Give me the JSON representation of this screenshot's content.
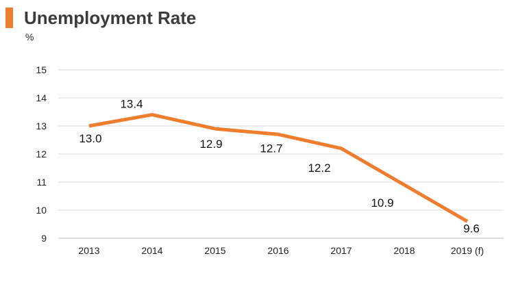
{
  "chart_data": {
    "type": "line",
    "title": "Unemployment Rate",
    "ylabel": "%",
    "xlabel": "",
    "categories": [
      "2013",
      "2014",
      "2015",
      "2016",
      "2017",
      "2018",
      "2019 (f)"
    ],
    "series": [
      {
        "values": [
          13.0,
          13.4,
          12.9,
          12.7,
          12.2,
          10.9,
          9.6
        ]
      }
    ],
    "data_labels": [
      "13.0",
      "13.4",
      "12.9",
      "12.7",
      "12.2",
      "10.9",
      "9.6"
    ],
    "yticks": [
      "9",
      "10",
      "11",
      "12",
      "13",
      "14",
      "15"
    ],
    "ylim": [
      9,
      15
    ],
    "grid": true,
    "legend": "none",
    "line_color": "#ee7d2d",
    "grid_color": "#d9d9d9"
  }
}
